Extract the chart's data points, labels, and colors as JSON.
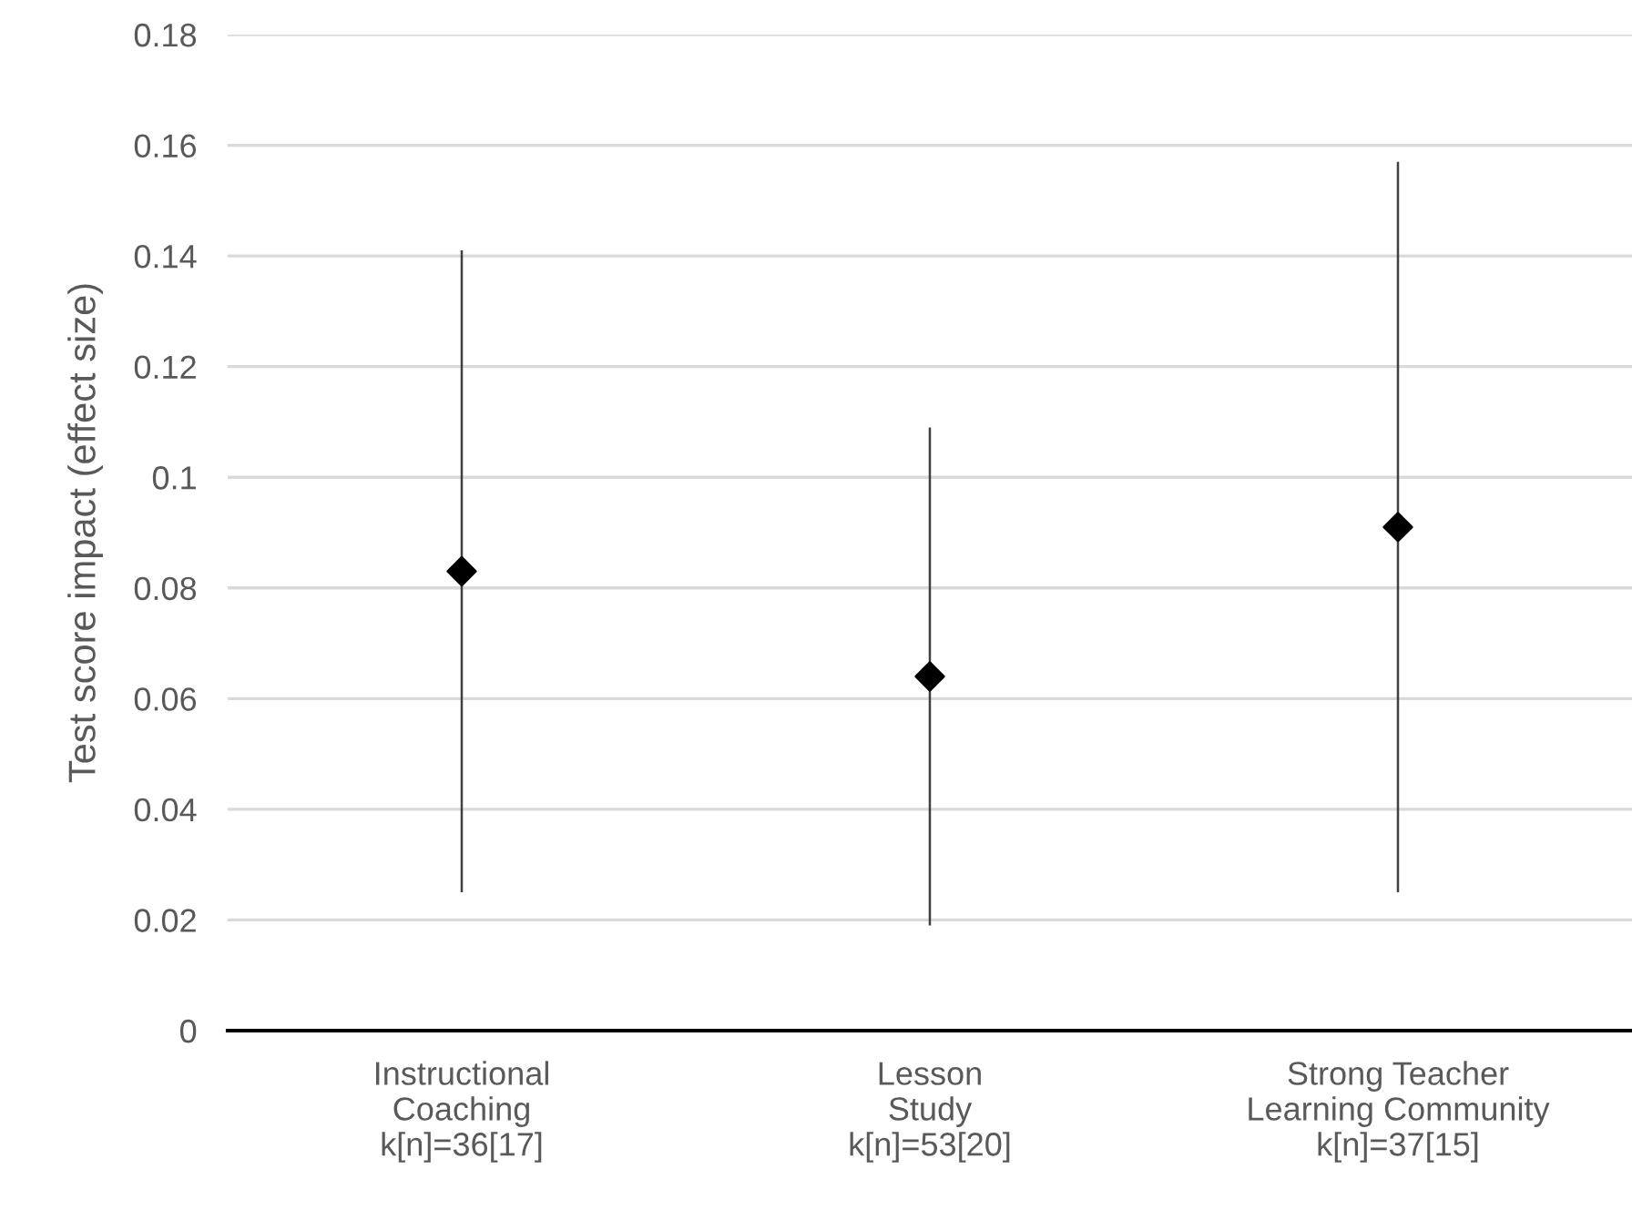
{
  "chart_data": {
    "type": "scatter",
    "ylabel": "Test score impact (effect size)",
    "categories": [
      "Instructional\nCoaching\nk[n]=36[17]",
      "Lesson\nStudy\nk[n]=53[20]",
      "Strong Teacher\nLearning Community\nk[n]=37[15]"
    ],
    "values": [
      0.083,
      0.064,
      0.091
    ],
    "errors": [
      [
        0.025,
        0.141
      ],
      [
        0.019,
        0.109
      ],
      [
        0.025,
        0.157
      ]
    ],
    "color": "#000000",
    "marker": "diamond",
    "grid": "y",
    "ylim": [
      0,
      0.18
    ],
    "yticks": [
      0,
      0.02,
      0.04,
      0.06,
      0.08,
      {
        "value": 0.1,
        "label": "0.1"
      },
      0.12,
      0.14,
      0.16,
      0.18
    ]
  }
}
